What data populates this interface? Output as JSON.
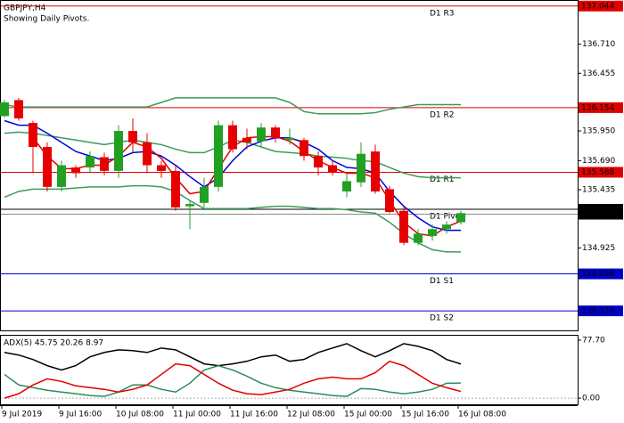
{
  "chart_data": [
    {
      "type": "candlestick",
      "title": "GBPJPY,H4",
      "subtitle": "Showing Daily Pivots.",
      "categories": [
        "9 Jul 2019",
        null,
        null,
        null,
        "9 Jul 16:00",
        null,
        null,
        null,
        "10 Jul 08:00",
        null,
        null,
        null,
        "11 Jul 00:00",
        null,
        null,
        null,
        "11 Jul 16:00",
        null,
        null,
        null,
        "12 Jul 08:00",
        null,
        null,
        null,
        "15 Jul 00:00",
        null,
        null,
        null,
        "15 Jul 16:00",
        null,
        null,
        null,
        "16 Jul 08:00"
      ],
      "open": [
        136.08,
        136.22,
        136.02,
        135.81,
        135.46,
        135.63,
        135.63,
        135.72,
        135.6,
        135.95,
        135.85,
        135.65,
        135.6,
        135.29,
        135.32,
        135.46,
        136.0,
        135.89,
        135.86,
        135.98,
        135.87,
        135.87,
        135.73,
        135.65,
        135.42,
        135.5,
        135.77,
        135.44,
        135.25,
        134.97,
        135.03,
        135.09,
        135.15
      ],
      "high": [
        136.22,
        136.24,
        136.04,
        135.85,
        135.69,
        135.65,
        135.77,
        135.76,
        136.0,
        136.06,
        135.93,
        135.69,
        135.65,
        135.34,
        135.54,
        136.04,
        136.04,
        135.97,
        136.02,
        136.0,
        135.97,
        135.89,
        135.77,
        135.69,
        135.58,
        135.85,
        135.83,
        135.47,
        135.29,
        135.09,
        135.13,
        135.16,
        135.25
      ],
      "low": [
        136.07,
        136.04,
        135.58,
        135.42,
        135.42,
        135.54,
        135.58,
        135.56,
        135.54,
        135.76,
        135.58,
        135.54,
        135.25,
        135.09,
        135.28,
        135.42,
        135.76,
        135.79,
        135.81,
        135.85,
        135.83,
        135.69,
        135.56,
        135.56,
        135.37,
        135.46,
        135.4,
        135.23,
        134.95,
        134.95,
        134.99,
        135.05,
        135.13
      ],
      "close": [
        136.2,
        136.06,
        135.81,
        135.46,
        135.65,
        135.58,
        135.73,
        135.6,
        135.95,
        135.85,
        135.65,
        135.6,
        135.28,
        135.31,
        135.46,
        136.0,
        135.79,
        135.85,
        135.98,
        135.89,
        135.89,
        135.73,
        135.63,
        135.59,
        135.51,
        135.75,
        135.42,
        135.24,
        134.97,
        135.05,
        135.09,
        135.13,
        135.23
      ],
      "up_color": "#22a022",
      "down_color": "#e60000",
      "series": [
        {
          "color": "#3c9a5c",
          "values": [
            136.18,
            136.16,
            136.16,
            136.16,
            136.16,
            136.16,
            136.16,
            136.16,
            136.16,
            136.16,
            136.16,
            136.2,
            136.24,
            136.24,
            136.24,
            136.24,
            136.24,
            136.24,
            136.24,
            136.24,
            136.2,
            136.12,
            136.1,
            136.1,
            136.1,
            136.1,
            136.11,
            136.14,
            136.16,
            136.18,
            136.18,
            136.18,
            136.18
          ]
        },
        {
          "color": "#3c9a5c",
          "values": [
            135.93,
            135.94,
            135.93,
            135.91,
            135.89,
            135.87,
            135.85,
            135.83,
            135.85,
            135.87,
            135.85,
            135.83,
            135.79,
            135.76,
            135.76,
            135.81,
            135.87,
            135.85,
            135.81,
            135.77,
            135.76,
            135.75,
            135.73,
            135.72,
            135.71,
            135.69,
            135.68,
            135.63,
            135.58,
            135.55,
            135.54,
            135.54,
            135.54
          ]
        },
        {
          "color": "#3c9a5c",
          "values": [
            135.37,
            135.42,
            135.44,
            135.44,
            135.44,
            135.45,
            135.46,
            135.46,
            135.46,
            135.47,
            135.47,
            135.46,
            135.42,
            135.34,
            135.27,
            135.27,
            135.27,
            135.27,
            135.28,
            135.29,
            135.29,
            135.28,
            135.27,
            135.27,
            135.26,
            135.24,
            135.23,
            135.15,
            135.05,
            134.97,
            134.91,
            134.89,
            134.89
          ]
        },
        {
          "color": "#0000e0",
          "values": [
            136.04,
            136.0,
            136.0,
            135.93,
            135.85,
            135.77,
            135.73,
            135.69,
            135.71,
            135.76,
            135.77,
            135.73,
            135.65,
            135.55,
            135.46,
            135.54,
            135.69,
            135.81,
            135.86,
            135.89,
            135.89,
            135.85,
            135.79,
            135.69,
            135.63,
            135.62,
            135.58,
            135.42,
            135.29,
            135.19,
            135.11,
            135.08,
            135.08
          ]
        },
        {
          "color": "#e00000",
          "values": [
            null,
            null,
            135.89,
            135.73,
            135.62,
            135.62,
            135.65,
            135.65,
            135.73,
            135.85,
            135.81,
            135.71,
            135.54,
            135.4,
            135.42,
            135.62,
            135.81,
            135.89,
            135.9,
            135.9,
            135.86,
            135.77,
            135.69,
            135.63,
            135.58,
            135.58,
            135.54,
            135.34,
            135.15,
            135.05,
            135.03,
            135.11,
            135.16
          ]
        }
      ],
      "levels": [
        {
          "label": "D1 R3",
          "value": 137.044,
          "color": "#e00000"
        },
        {
          "label": "D1 R2",
          "value": 136.154,
          "color": "#e00000"
        },
        {
          "label": "D1 R1",
          "value": 135.588,
          "color": "#e00000"
        },
        {
          "label": "D1 Pivot",
          "value": 135.264,
          "color": "#000000"
        },
        {
          "label": "D1 S1",
          "value": 134.698,
          "color": "#0000c8"
        },
        {
          "label": "D1 S2",
          "value": 134.374,
          "color": "#0000c8"
        }
      ],
      "last_price": 135.221,
      "ylim": [
        134.203,
        137.097
      ],
      "yticks": [
        {
          "value": 136.71,
          "label": "136.710"
        },
        136.455,
        {
          "value": 135.95,
          "label": "135.950"
        },
        {
          "value": 135.69,
          "label": "135.690"
        },
        135.435,
        134.925
      ]
    },
    {
      "type": "line",
      "title": "ADX(5) 45.75 20.26 8.97",
      "series": [
        {
          "color": "#000000",
          "values": [
            61.2,
            57.7,
            51.8,
            43.5,
            37.7,
            43.5,
            55.3,
            61.2,
            64.7,
            63.6,
            61.2,
            67.1,
            64.7,
            55.3,
            45.9,
            43.5,
            45.9,
            49.4,
            55.3,
            57.7,
            49.4,
            51.8,
            61.2,
            67.1,
            73.0,
            63.6,
            55.3,
            63.6,
            73.0,
            69.4,
            63.6,
            51.8,
            45.75
          ]
        },
        {
          "color": "#2e8b57",
          "values": [
            31.8,
            17.7,
            14.1,
            10.6,
            8.2,
            5.9,
            3.5,
            2.4,
            8.2,
            17.7,
            17.7,
            11.8,
            8.2,
            20.0,
            37.7,
            43.5,
            37.7,
            29.4,
            20.0,
            14.1,
            10.6,
            8.2,
            5.9,
            3.5,
            2.4,
            12.9,
            11.8,
            8.2,
            5.9,
            8.2,
            11.8,
            20.0,
            20.26
          ]
        },
        {
          "color": "#e00000",
          "values": [
            0,
            5.9,
            17.7,
            25.9,
            22.4,
            16.5,
            14.1,
            11.8,
            8.2,
            11.8,
            17.7,
            31.8,
            45.9,
            43.5,
            31.8,
            20.0,
            10.6,
            5.9,
            4.7,
            8.2,
            11.8,
            20.0,
            25.9,
            28.2,
            25.9,
            25.9,
            34.1,
            49.4,
            43.5,
            31.8,
            20.0,
            14.1,
            8.97
          ]
        }
      ],
      "ylim": [
        -9.42,
        83.59
      ],
      "yticks": [
        {
          "value": 77.7,
          "label": "77.70"
        },
        {
          "value": 0,
          "label": "0.00"
        }
      ]
    }
  ]
}
